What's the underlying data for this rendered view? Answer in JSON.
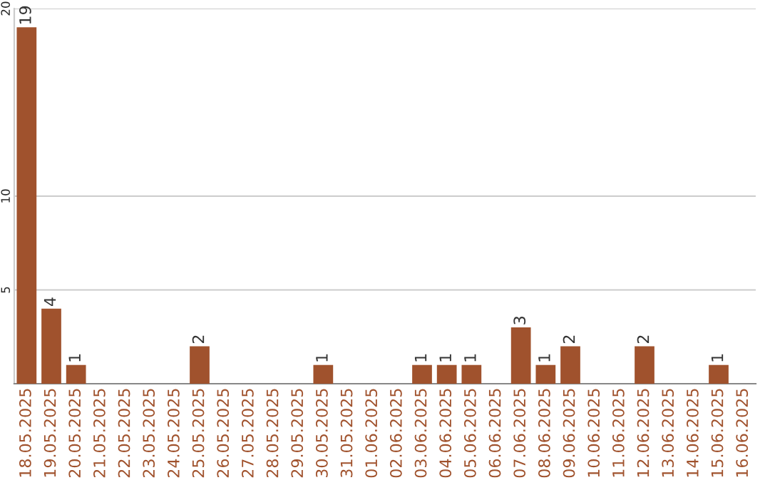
{
  "chart_data": {
    "type": "bar",
    "categories": [
      "18.05.2025",
      "19.05.2025",
      "20.05.2025",
      "21.05.2025",
      "22.05.2025",
      "23.05.2025",
      "24.05.2025",
      "25.05.2025",
      "26.05.2025",
      "27.05.2025",
      "28.05.2025",
      "29.05.2025",
      "30.05.2025",
      "31.05.2025",
      "01.06.2025",
      "02.06.2025",
      "03.06.2025",
      "04.06.2025",
      "05.06.2025",
      "06.06.2025",
      "07.06.2025",
      "08.06.2025",
      "09.06.2025",
      "10.06.2025",
      "11.06.2025",
      "12.06.2025",
      "13.06.2025",
      "14.06.2025",
      "15.06.2025",
      "16.06.2025"
    ],
    "values": [
      19,
      4,
      1,
      0,
      0,
      0,
      0,
      2,
      0,
      0,
      0,
      0,
      1,
      0,
      0,
      0,
      1,
      1,
      1,
      0,
      3,
      1,
      2,
      0,
      0,
      2,
      0,
      0,
      1,
      0
    ],
    "value_labels": [
      "19",
      "4",
      "1",
      null,
      null,
      null,
      null,
      "2",
      null,
      null,
      null,
      null,
      "1",
      null,
      null,
      null,
      "1",
      "1",
      "1",
      null,
      "3",
      "1",
      "2",
      null,
      null,
      "2",
      null,
      null,
      "1",
      null
    ],
    "color": "#a0522d",
    "ylim": [
      0,
      20
    ],
    "yticks": [
      5,
      10,
      20
    ],
    "grid": "y"
  }
}
